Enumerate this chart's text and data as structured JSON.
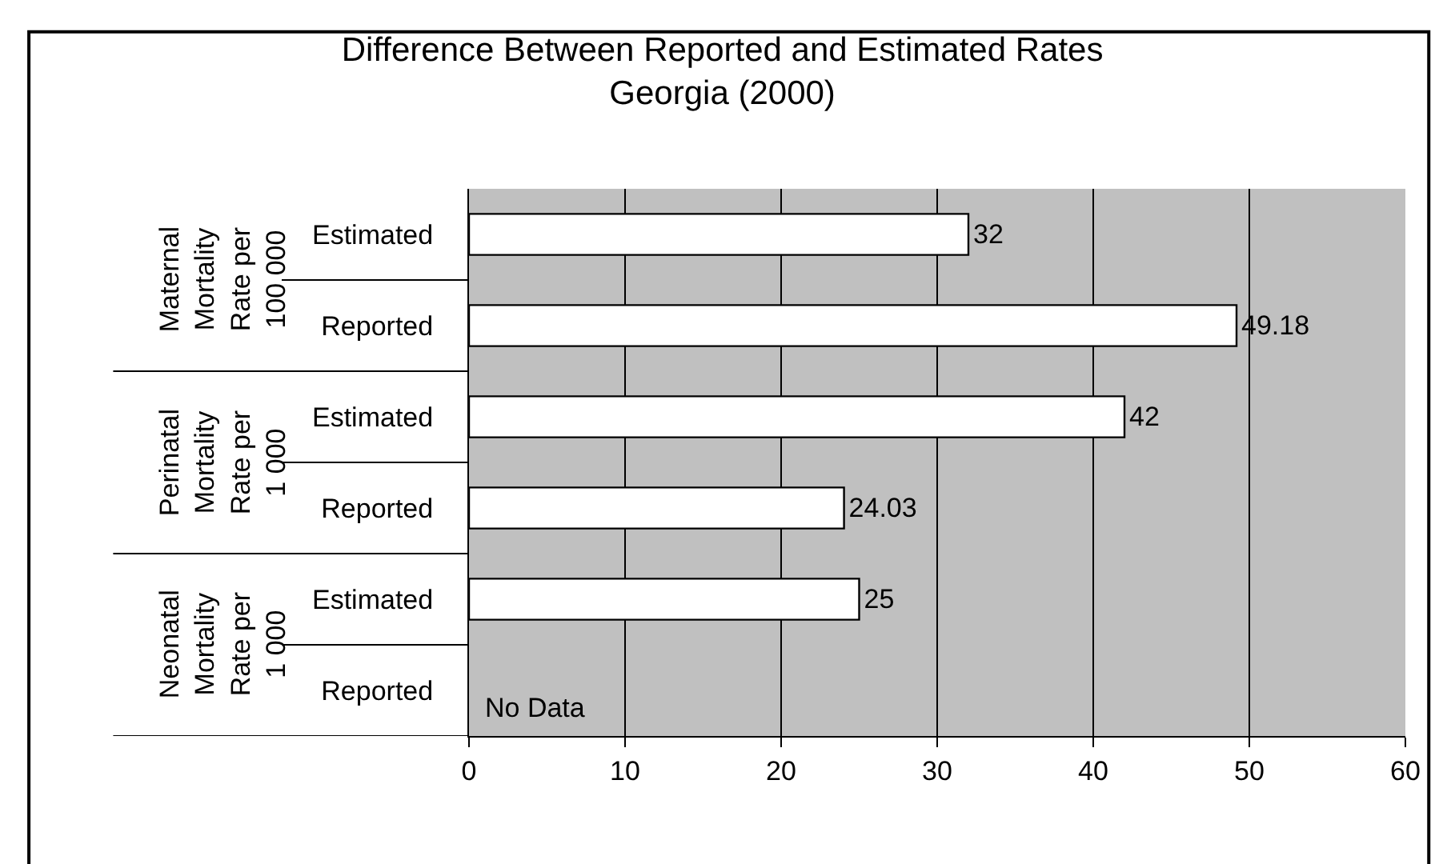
{
  "chart_data": {
    "type": "bar",
    "orientation": "horizontal",
    "title": "Difference Between Reported and Estimated Rates\nGeorgia (2000)",
    "categories": [
      "Estimated",
      "Reported",
      "Estimated",
      "Reported",
      "Estimated",
      "Reported"
    ],
    "values": [
      32,
      49.18,
      42,
      24.03,
      25,
      null
    ],
    "colors": [
      "#ffffff",
      "#ffffff",
      "#ffffff",
      "#ffffff",
      "#ffffff",
      "#ffffff"
    ],
    "data_labels": true,
    "xlim": [
      0,
      60
    ],
    "xticks": [
      0,
      10,
      20,
      30,
      40,
      50,
      60
    ],
    "grid": "x",
    "annotations": [
      "Maternal\nMortality\nRate per\n100 000",
      "Perinatal\nMortality\nRate per\n1 000",
      "Neonatal\nMortality\nRate per\n1 000",
      "No Data"
    ]
  }
}
